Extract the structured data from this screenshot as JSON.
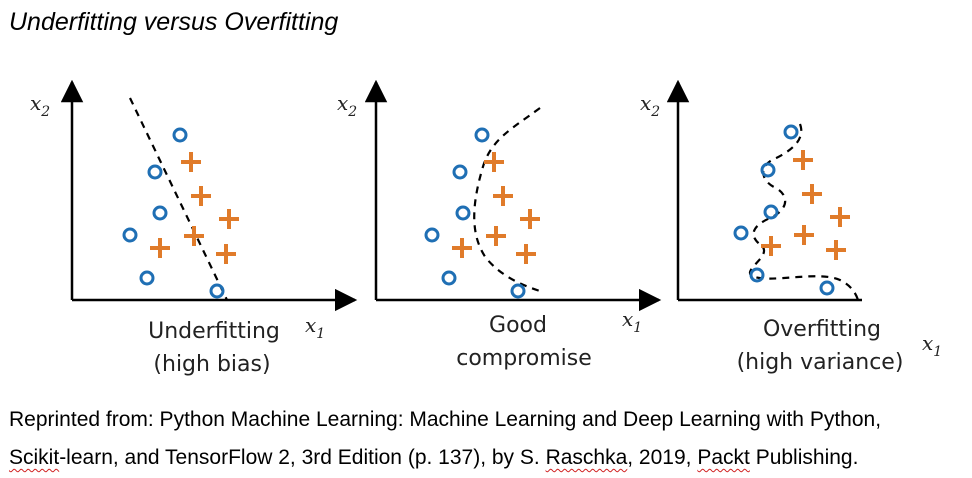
{
  "heading": "Underfitting versus Overfitting",
  "panels": [
    {
      "label_line1": "Underfitting",
      "label_line2": "(high bias)",
      "x_axis": "x",
      "x_sub": "1",
      "y_axis": "x",
      "y_sub": "2"
    },
    {
      "label_line1": "Good",
      "label_line2": "compromise",
      "x_axis": "x",
      "x_sub": "1",
      "y_axis": "x",
      "y_sub": "2"
    },
    {
      "label_line1": "Overfitting",
      "label_line2": "(high variance)",
      "x_axis": "x",
      "x_sub": "1",
      "y_axis": "x",
      "y_sub": "2"
    }
  ],
  "caption": {
    "line1": "Reprinted from: Python Machine Learning: Machine Learning and Deep Learning with Python,",
    "line2_a": "Scikit",
    "line2_b": "-learn, and TensorFlow 2, 3rd Edition (p. 137), by S. ",
    "line2_c": "Raschka",
    "line2_d": ", 2019, ",
    "line2_e": "Packt",
    "line2_f": " Publishing."
  },
  "colors": {
    "circle": "#1f6fb4",
    "plus": "#e07b2a",
    "axis": "#000000",
    "boundary": "#000000"
  }
}
